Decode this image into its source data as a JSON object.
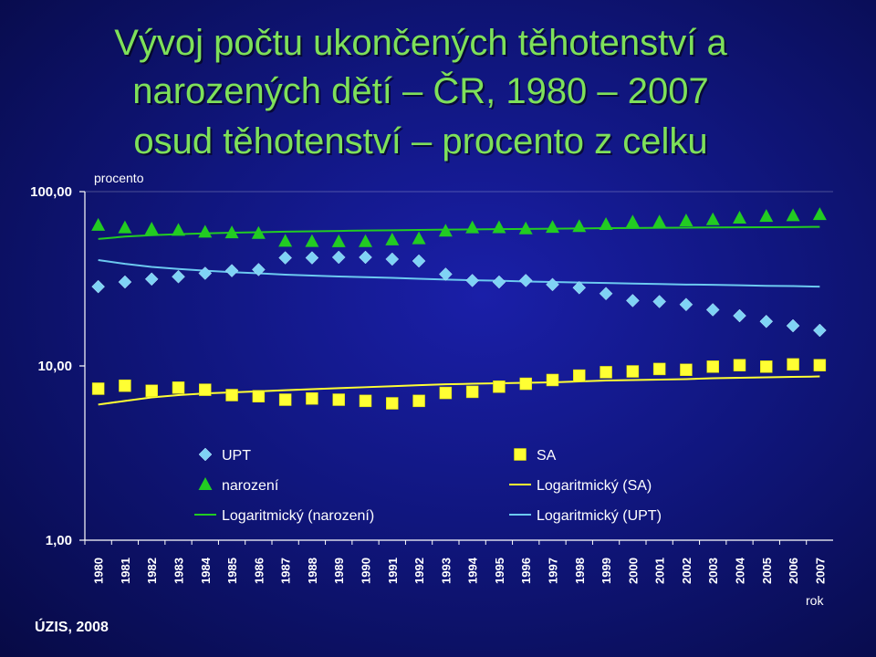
{
  "title_lines": [
    "Vývoj počtu ukončených těhotenství a",
    "narozených dětí – ČR, 1980 – 2007",
    "osud těhotenství – procento z celku"
  ],
  "source": "ÚZIS, 2008",
  "colors": {
    "title": "#7ee05a",
    "upt": "#7fd3f5",
    "sa": "#ffff33",
    "narozeni": "#22cc22",
    "trend_sa": "#ffff33",
    "trend_upt": "#6cc9f0",
    "trend_narozeni": "#22cc22"
  },
  "chart_data": {
    "type": "scatter",
    "y_scale": "log",
    "ylim": [
      1,
      100
    ],
    "yticks": [
      "1,00",
      "10,00",
      "100,00"
    ],
    "ylabel": "procento",
    "xlabel": "rok",
    "grid": false,
    "legend_position": "bottom-inside",
    "x": [
      "1980",
      "1981",
      "1982",
      "1983",
      "1984",
      "1985",
      "1986",
      "1987",
      "1988",
      "1989",
      "1990",
      "1991",
      "1992",
      "1993",
      "1994",
      "1995",
      "1996",
      "1997",
      "1998",
      "1999",
      "2000",
      "2001",
      "2002",
      "2003",
      "2004",
      "2005",
      "2006",
      "2007"
    ],
    "series": [
      {
        "name": "UPT",
        "marker": "diamond",
        "values": [
          28.5,
          30.3,
          31.5,
          32.5,
          34.0,
          35.2,
          35.7,
          41.7,
          41.7,
          42.0,
          42.0,
          41.0,
          40.0,
          33.6,
          30.9,
          30.3,
          30.9,
          29.3,
          28.1,
          26.0,
          23.7,
          23.4,
          22.5,
          21.0,
          19.4,
          18.0,
          17.0,
          16.0
        ]
      },
      {
        "name": "SA",
        "marker": "square",
        "values": [
          7.4,
          7.7,
          7.2,
          7.5,
          7.3,
          6.8,
          6.7,
          6.4,
          6.5,
          6.4,
          6.3,
          6.1,
          6.3,
          7.0,
          7.1,
          7.6,
          7.9,
          8.3,
          8.8,
          9.2,
          9.3,
          9.6,
          9.5,
          9.9,
          10.1,
          9.9,
          10.2,
          10.1
        ]
      },
      {
        "name": "narození",
        "marker": "triangle",
        "values": [
          64.1,
          62.0,
          61.0,
          60.0,
          58.6,
          58.0,
          57.6,
          51.9,
          51.8,
          51.6,
          51.7,
          52.9,
          53.7,
          59.4,
          62.0,
          62.1,
          61.2,
          62.4,
          63.1,
          64.8,
          67.0,
          67.0,
          68.0,
          69.0,
          70.5,
          72.1,
          72.8,
          73.9
        ]
      },
      {
        "name": "Logaritmický (SA)",
        "type": "line",
        "values": [
          6.0,
          6.3,
          6.6,
          6.8,
          6.95,
          7.05,
          7.15,
          7.25,
          7.35,
          7.45,
          7.55,
          7.65,
          7.75,
          7.85,
          7.9,
          7.95,
          8.0,
          8.05,
          8.15,
          8.25,
          8.3,
          8.35,
          8.4,
          8.5,
          8.55,
          8.6,
          8.65,
          8.7
        ]
      },
      {
        "name": "Logaritmický (UPT)",
        "type": "line",
        "values": [
          40.5,
          38.5,
          37.0,
          36.0,
          35.2,
          34.5,
          34.0,
          33.4,
          33.0,
          32.6,
          32.3,
          32.0,
          31.6,
          31.3,
          31.0,
          30.8,
          30.5,
          30.3,
          30.1,
          29.9,
          29.7,
          29.5,
          29.3,
          29.2,
          29.0,
          28.8,
          28.7,
          28.5
        ]
      },
      {
        "name": "Logaritmický (narození)",
        "type": "line",
        "values": [
          53.5,
          55.2,
          56.2,
          57.0,
          57.6,
          58.1,
          58.5,
          58.9,
          59.2,
          59.5,
          59.8,
          60.0,
          60.3,
          60.5,
          60.7,
          60.9,
          61.1,
          61.3,
          61.5,
          61.7,
          61.8,
          62.0,
          62.1,
          62.3,
          62.4,
          62.5,
          62.6,
          62.8
        ]
      }
    ],
    "legend": [
      {
        "label": "UPT",
        "marker": "diamond"
      },
      {
        "label": "SA",
        "marker": "square"
      },
      {
        "label": "narození",
        "marker": "triangle"
      },
      {
        "label": "Logaritmický (SA)",
        "marker": "line"
      },
      {
        "label": "Logaritmický (narození)",
        "marker": "line"
      },
      {
        "label": "Logaritmický (UPT)",
        "marker": "line"
      }
    ]
  }
}
